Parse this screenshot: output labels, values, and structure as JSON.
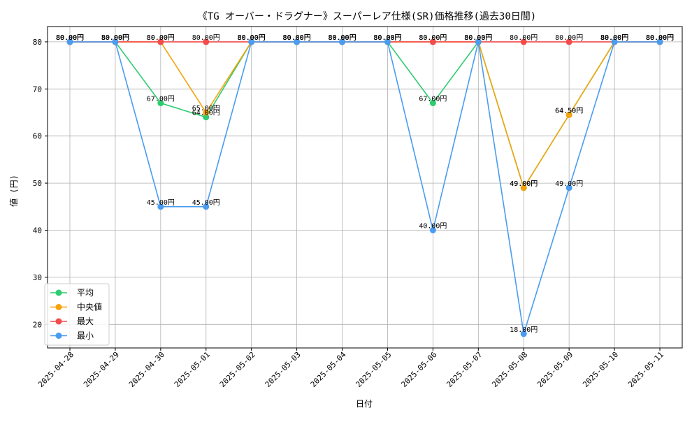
{
  "chart_data": {
    "type": "line",
    "title": "《TG オーバー・ドラグナー》スーパーレア仕様(SR)価格推移(過去30日間)",
    "xlabel": "日付",
    "ylabel": "値 (円)",
    "ylim": [
      15,
      83.25
    ],
    "yticks": [
      20,
      30,
      40,
      50,
      60,
      70,
      80
    ],
    "grid": true,
    "legend_position": "bottom-left",
    "label_suffix": "円",
    "categories": [
      "2025-04-28",
      "2025-04-29",
      "2025-04-30",
      "2025-05-01",
      "2025-05-02",
      "2025-05-03",
      "2025-05-04",
      "2025-05-05",
      "2025-05-06",
      "2025-05-07",
      "2025-05-08",
      "2025-05-09",
      "2025-05-10",
      "2025-05-11"
    ],
    "series": [
      {
        "name": "平均",
        "color": "#2ecc71",
        "values": [
          80,
          80,
          67,
          64,
          80,
          80,
          80,
          80,
          67,
          80,
          49,
          64.5,
          80,
          80
        ],
        "labels": [
          "80.00円",
          "80.00円",
          "67.00円",
          "64.00円",
          "80.00円",
          "80.00円",
          "80.00円",
          "80.00円",
          "67.00円",
          "80.00円",
          "49.00円",
          "64.50円",
          "80.00円",
          "80.00円"
        ]
      },
      {
        "name": "中央値",
        "color": "#f5a30a",
        "values": [
          80,
          80,
          80,
          65,
          80,
          80,
          80,
          80,
          80,
          80,
          49,
          64.5,
          80,
          80
        ],
        "labels": [
          "80.00円",
          "80.00円",
          "80.00円",
          "65.00円",
          "80.00円",
          "80.00円",
          "80.00円",
          "80.00円",
          "80.00円",
          "80.00円",
          "49.00円",
          "64.50円",
          "80.00円",
          "80.00円"
        ]
      },
      {
        "name": "最大",
        "color": "#f24b4b",
        "values": [
          80,
          80,
          80,
          80,
          80,
          80,
          80,
          80,
          80,
          80,
          80,
          80,
          80,
          80
        ],
        "labels": [
          "80.00円",
          "80.00円",
          "80.00円",
          "80.00円",
          "80.00円",
          "80.00円",
          "80.00円",
          "80.00円",
          "80.00円",
          "80.00円",
          "80.00円",
          "80.00円",
          "80.00円",
          "80.00円"
        ]
      },
      {
        "name": "最小",
        "color": "#4a9cf0",
        "values": [
          80,
          80,
          45,
          45,
          80,
          80,
          80,
          80,
          40,
          80,
          18,
          49,
          80,
          80
        ],
        "labels": [
          "80.00円",
          "80.00円",
          "45.00円",
          "45.00円",
          "80.00円",
          "80.00円",
          "80.00円",
          "80.00円",
          "40.00円",
          "80.00円",
          "18.00円",
          "49.00円",
          "80.00円",
          "80.00円"
        ]
      }
    ]
  }
}
